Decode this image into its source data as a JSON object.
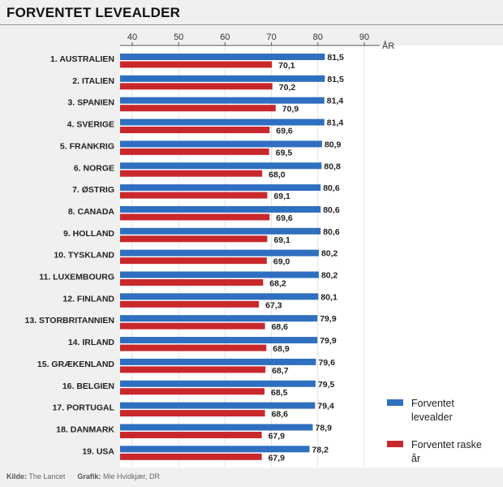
{
  "title": "FORVENTET LEVEALDER",
  "footer": {
    "source_label": "Kilde:",
    "source_value": "The Lancet",
    "graphic_label": "Grafik:",
    "graphic_value": "Mie Hvidkjær, DR"
  },
  "colors": {
    "blue": "#2f6fc0",
    "red": "#c8282c"
  },
  "chart_data": {
    "type": "bar",
    "orientation": "horizontal",
    "unit": "ÅR",
    "xlim": [
      37,
      90
    ],
    "ticks": [
      40,
      50,
      60,
      70,
      80,
      90
    ],
    "grid": true,
    "legend_position": "bottom-right",
    "categories": [
      "1. AUSTRALIEN",
      "2. ITALIEN",
      "3. SPANIEN",
      "4. SVERIGE",
      "5. FRANKRIG",
      "6. NORGE",
      "7. ØSTRIG",
      "8. CANADA",
      "9. HOLLAND",
      "10. TYSKLAND",
      "11. LUXEMBOURG",
      "12. FINLAND",
      "13. STORBRITANNIEN",
      "14. IRLAND",
      "15. GRÆKENLAND",
      "16. BELGIEN",
      "17. PORTUGAL",
      "18. DANMARK",
      "19. USA"
    ],
    "series": [
      {
        "name": "Forventet levealder",
        "values": [
          81.5,
          81.5,
          81.4,
          81.4,
          80.9,
          80.8,
          80.6,
          80.6,
          80.6,
          80.2,
          80.2,
          80.1,
          79.9,
          79.9,
          79.6,
          79.5,
          79.4,
          78.9,
          78.2
        ],
        "labels": [
          "81,5",
          "81,5",
          "81,4",
          "81,4",
          "80,9",
          "80,8",
          "80,6",
          "80,6",
          "80,6",
          "80,2",
          "80,2",
          "80,1",
          "79,9",
          "79,9",
          "79,6",
          "79,5",
          "79,4",
          "78,9",
          "78,2"
        ]
      },
      {
        "name": "Forventet raske år",
        "values": [
          70.1,
          70.2,
          70.9,
          69.6,
          69.5,
          68.0,
          69.1,
          69.6,
          69.1,
          69.0,
          68.2,
          67.3,
          68.6,
          68.9,
          68.7,
          68.5,
          68.6,
          67.9,
          67.9
        ],
        "labels": [
          "70,1",
          "70,2",
          "70,9",
          "69,6",
          "69,5",
          "68,0",
          "69,1",
          "69,6",
          "69,1",
          "69,0",
          "68,2",
          "67,3",
          "68,6",
          "68,9",
          "68,7",
          "68,5",
          "68,6",
          "67,9",
          "67,9"
        ]
      }
    ],
    "legend": [
      {
        "lines": [
          "Forventet",
          "levealder"
        ]
      },
      {
        "lines": [
          "Forventet raske",
          "år"
        ]
      }
    ]
  }
}
